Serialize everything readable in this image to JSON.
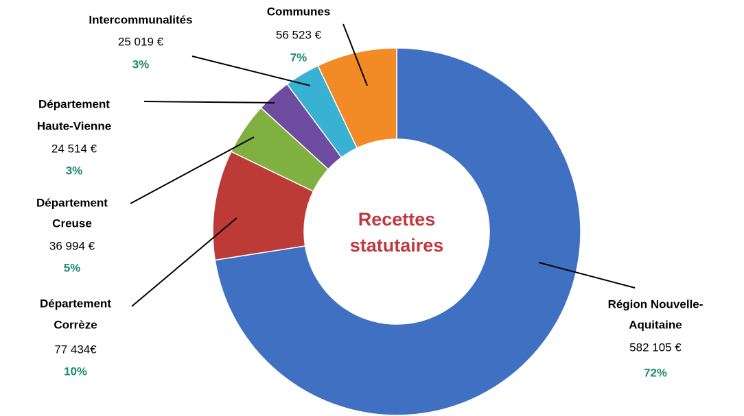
{
  "chart_data": {
    "type": "donut",
    "center_label": [
      "Recettes",
      "statutaires"
    ],
    "categories": [
      [
        "Région Nouvelle-",
        "Aquitaine"
      ],
      [
        "Département",
        "Corrèze"
      ],
      [
        "Département",
        "Creuse"
      ],
      [
        "Département",
        "Haute-Vienne"
      ],
      [
        "Intercommunalités"
      ],
      [
        "Communes"
      ]
    ],
    "values": [
      582105,
      77434,
      36994,
      24514,
      25019,
      56523
    ],
    "value_labels": [
      "582 105 €",
      "77 434€",
      "36 994 €",
      "24 514 €",
      "25 019 €",
      "56 523 €"
    ],
    "percent_labels": [
      "72%",
      "10%",
      "5%",
      "3%",
      "3%",
      "7%"
    ],
    "colors": [
      "#3f70c1",
      "#bd3b36",
      "#80b140",
      "#6d4b9f",
      "#38b1d2",
      "#f28a25"
    ]
  }
}
